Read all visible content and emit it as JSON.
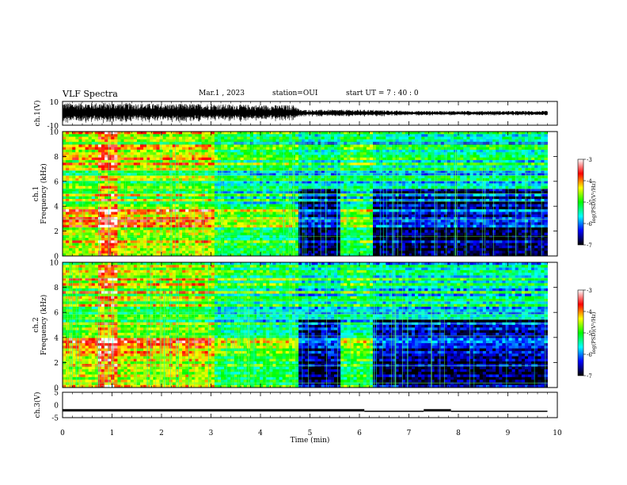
{
  "header": {
    "title": "VLF Spectra",
    "date": "Mar.1 , 2023",
    "station": "station=OUI",
    "start": "start UT =  7 : 40 : 0"
  },
  "colorbar": {
    "label": "log(PSD)(V²/Hz)",
    "ticks": [
      "-3",
      "-4",
      "-5",
      "-6",
      "-7"
    ],
    "stops": [
      "#ffffff",
      "#ff0000",
      "#ffff00",
      "#00ff00",
      "#00ffff",
      "#0000ff",
      "#000000"
    ]
  },
  "chart_data": [
    {
      "type": "line",
      "panel": "ch1-waveform",
      "ylabel": "ch.1(V)",
      "ylim": [
        -10,
        10
      ],
      "ytick_labels": [
        "10",
        "-10"
      ],
      "xlim": [
        0,
        10
      ],
      "envelope": {
        "x": [
          0,
          1,
          2,
          3,
          4,
          4.7,
          4.8,
          5,
          6,
          6.2,
          7,
          8,
          9,
          9.8
        ],
        "amplitude": [
          9,
          9,
          8,
          8,
          7,
          7,
          3,
          3,
          3,
          3,
          2,
          2,
          2,
          2
        ]
      }
    },
    {
      "type": "heatmap",
      "panel": "ch1-spectrogram",
      "ylabel": "ch.1\nFrequency (kHz)",
      "ylim": [
        0,
        10
      ],
      "ytick_labels": [
        "0",
        "2",
        "4",
        "6",
        "8",
        "10"
      ],
      "xlim": [
        0,
        10
      ],
      "colorbar_range": [
        -7,
        -3
      ],
      "segments": [
        {
          "x": [
            0,
            0.7
          ],
          "level": "high"
        },
        {
          "x": [
            0.7,
            1.1
          ],
          "level": "very-high"
        },
        {
          "x": [
            1.1,
            3.05
          ],
          "level": "high"
        },
        {
          "x": [
            3.05,
            4.75
          ],
          "level": "medium"
        },
        {
          "x": [
            4.75,
            5.65
          ],
          "level": "low"
        },
        {
          "x": [
            5.65,
            6.3
          ],
          "level": "medium"
        },
        {
          "x": [
            6.3,
            9.8
          ],
          "level": "low"
        }
      ]
    },
    {
      "type": "heatmap",
      "panel": "ch2-spectrogram",
      "ylabel": "ch.2\nFrequency (kHz)",
      "ylim": [
        0,
        10
      ],
      "ytick_labels": [
        "0",
        "2",
        "4",
        "6",
        "8",
        "10"
      ],
      "xlim": [
        0,
        10
      ],
      "colorbar_range": [
        -7,
        -3
      ],
      "segments": [
        {
          "x": [
            0,
            0.7
          ],
          "level": "high"
        },
        {
          "x": [
            0.7,
            1.1
          ],
          "level": "very-high"
        },
        {
          "x": [
            1.1,
            3.05
          ],
          "level": "high"
        },
        {
          "x": [
            3.05,
            4.75
          ],
          "level": "medium"
        },
        {
          "x": [
            4.75,
            5.65
          ],
          "level": "low"
        },
        {
          "x": [
            5.65,
            6.3
          ],
          "level": "medium"
        },
        {
          "x": [
            6.3,
            9.8
          ],
          "level": "low"
        }
      ]
    },
    {
      "type": "line",
      "panel": "ch3-signal",
      "ylabel": "ch.3(V)",
      "ylim": [
        -5,
        5
      ],
      "ytick_labels": [
        "5",
        "0",
        "-5"
      ],
      "xlim": [
        0,
        10
      ],
      "xlabel": "Time (min)",
      "xtick_labels": [
        "0",
        "1",
        "2",
        "3",
        "4",
        "5",
        "6",
        "7",
        "8",
        "9",
        "10"
      ],
      "series": [
        {
          "x": [
            0,
            6.1
          ],
          "y": [
            -2.1,
            -2.1
          ]
        },
        {
          "x": [
            6.1,
            7.3
          ],
          "y": [
            -2.5,
            -2.5
          ]
        },
        {
          "x": [
            7.3,
            7.85
          ],
          "y": [
            -2.1,
            -2.1
          ]
        },
        {
          "x": [
            7.85,
            9.8
          ],
          "y": [
            -2.5,
            -2.5
          ]
        }
      ]
    }
  ]
}
